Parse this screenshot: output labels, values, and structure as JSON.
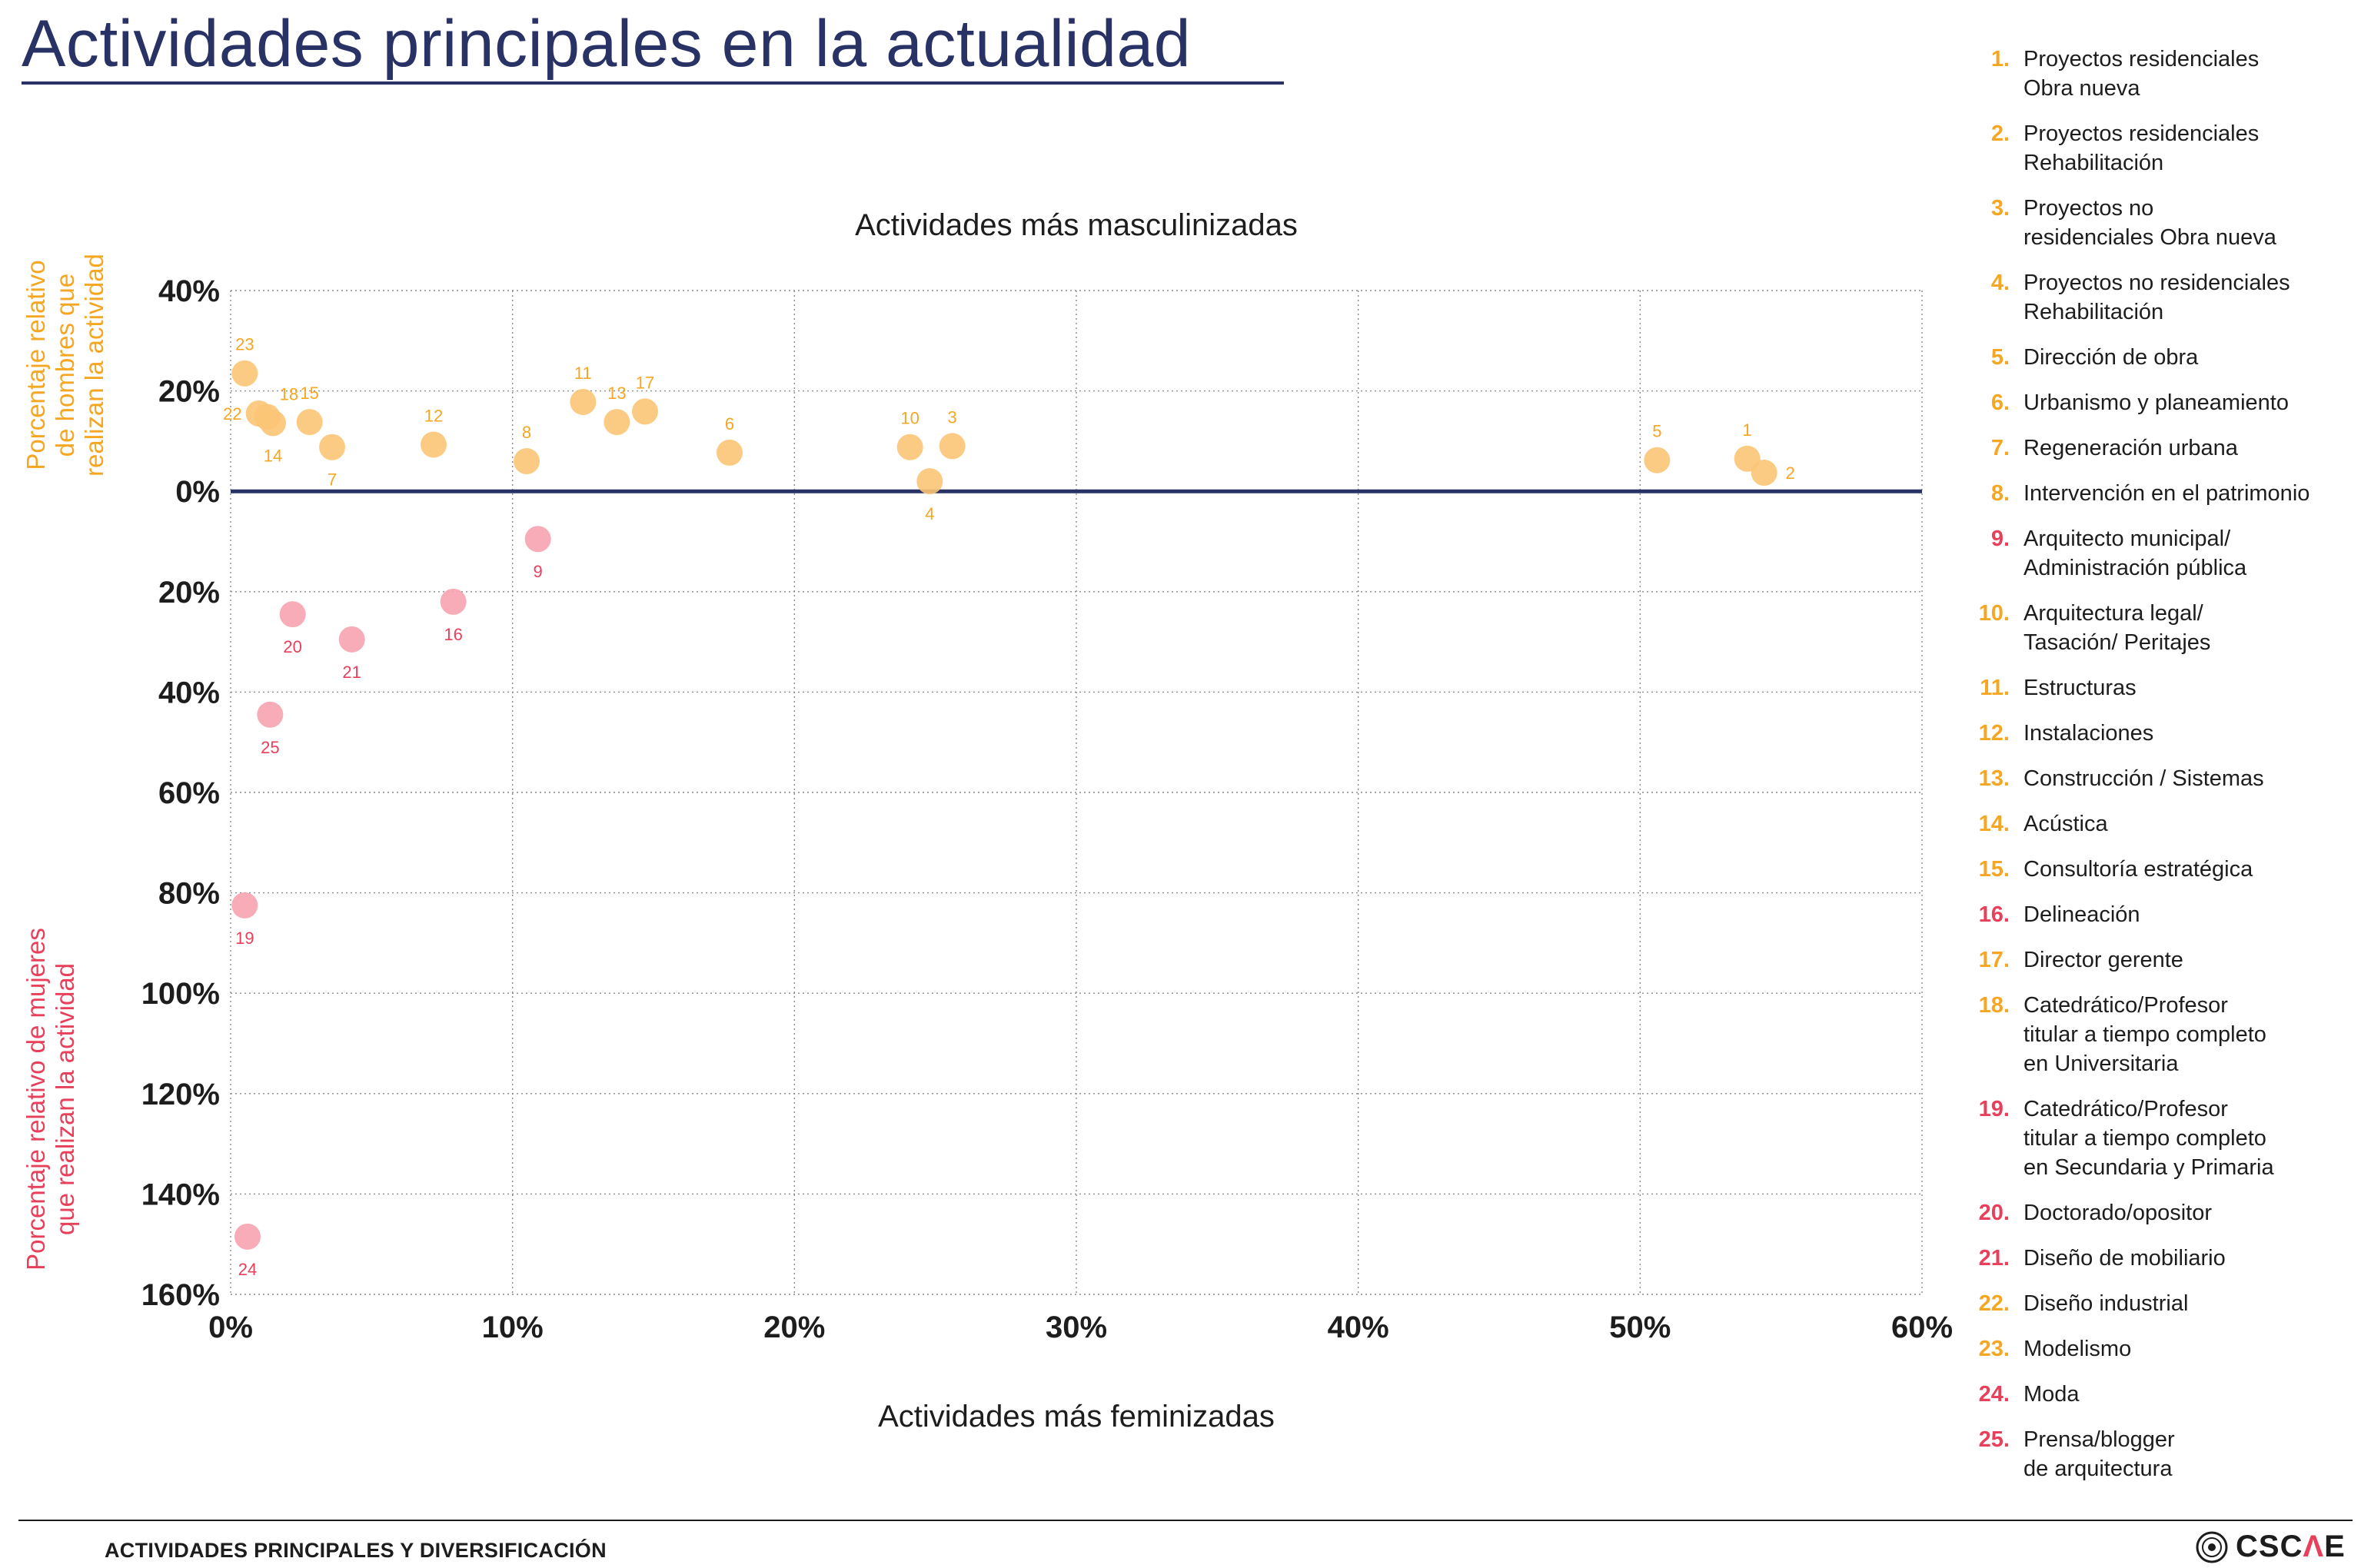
{
  "header": {
    "title": "Actividades principales en la actualidad"
  },
  "footer": {
    "section_label": "ACTIVIDADES PRINCIPALES Y DIVERSIFICACIÓN",
    "logo_text_a": "CSC",
    "logo_text_accent": "Λ",
    "logo_text_b": "E"
  },
  "colors": {
    "title": "#283264",
    "male": "#f5a623",
    "male_point": "#fbc576",
    "female": "#e8405b",
    "female_point": "#f7a3b0",
    "zero_line": "#283264",
    "grid": "#8a8a8a"
  },
  "legend": [
    {
      "num": "1.",
      "text": "Proyectos residenciales\nObra nueva",
      "group": "male"
    },
    {
      "num": "2.",
      "text": "Proyectos  residenciales\nRehabilitación",
      "group": "male"
    },
    {
      "num": "3.",
      "text": "Proyectos no\nresidenciales Obra nueva",
      "group": "male"
    },
    {
      "num": "4.",
      "text": "Proyectos no residenciales\nRehabilitación",
      "group": "male"
    },
    {
      "num": "5.",
      "text": "Dirección de obra",
      "group": "male"
    },
    {
      "num": "6.",
      "text": "Urbanismo y planeamiento",
      "group": "male"
    },
    {
      "num": "7.",
      "text": "Regeneración urbana",
      "group": "male"
    },
    {
      "num": "8.",
      "text": "Intervención en el patrimonio",
      "group": "male"
    },
    {
      "num": "9.",
      "text": "Arquitecto municipal/\nAdministración pública",
      "group": "female"
    },
    {
      "num": "10.",
      "text": "Arquitectura legal/\nTasación/ Peritajes",
      "group": "male"
    },
    {
      "num": "11.",
      "text": "Estructuras",
      "group": "male"
    },
    {
      "num": "12.",
      "text": "Instalaciones",
      "group": "male"
    },
    {
      "num": "13.",
      "text": "Construcción / Sistemas",
      "group": "male"
    },
    {
      "num": "14.",
      "text": "Acústica",
      "group": "male"
    },
    {
      "num": "15.",
      "text": "Consultoría estratégica",
      "group": "male"
    },
    {
      "num": "16.",
      "text": "Delineación",
      "group": "female"
    },
    {
      "num": "17.",
      "text": "Director gerente",
      "group": "male"
    },
    {
      "num": "18.",
      "text": "Catedrático/Profesor\ntitular a tiempo completo\nen Universitaria",
      "group": "male"
    },
    {
      "num": "19.",
      "text": "Catedrático/Profesor\ntitular a tiempo completo\nen Secundaria y Primaria",
      "group": "female"
    },
    {
      "num": "20.",
      "text": "Doctorado/opositor",
      "group": "female"
    },
    {
      "num": "21.",
      "text": "Diseño de mobiliario",
      "group": "female"
    },
    {
      "num": "22.",
      "text": "Diseño industrial",
      "group": "male"
    },
    {
      "num": "23.",
      "text": "Modelismo",
      "group": "male"
    },
    {
      "num": "24.",
      "text": "Moda",
      "group": "female"
    },
    {
      "num": "25.",
      "text": "Prensa/blogger\nde arquitectura",
      "group": "female"
    }
  ],
  "chart_data": {
    "type": "scatter",
    "title_top": "Actividades más masculinizadas",
    "xlabel": "Actividades más feminizadas",
    "ylabel_male": "Porcentaje relativo\nde hombres que\nrealizan la actividad",
    "ylabel_female": "Porcentaje relativo de mujeres\nque realizan la actividad",
    "x_ticks": [
      "0%",
      "10%",
      "20%",
      "30%",
      "40%",
      "50%",
      "60%"
    ],
    "x_range": [
      0,
      60
    ],
    "y_ticks": [
      {
        "value": 40,
        "label": "40%"
      },
      {
        "value": 20,
        "label": "20%"
      },
      {
        "value": 0,
        "label": "0%"
      },
      {
        "value": -20,
        "label": "20%"
      },
      {
        "value": -40,
        "label": "40%"
      },
      {
        "value": -60,
        "label": "60%"
      },
      {
        "value": -80,
        "label": "80%"
      },
      {
        "value": -100,
        "label": "100%"
      },
      {
        "value": -120,
        "label": "120%"
      },
      {
        "value": -140,
        "label": "140%"
      },
      {
        "value": -160,
        "label": "160%"
      }
    ],
    "y_range": [
      -160,
      40
    ],
    "grid": true,
    "points": [
      {
        "id": "1",
        "x": 53.8,
        "y": 6.5,
        "group": "male",
        "label_pos": "above"
      },
      {
        "id": "2",
        "x": 54.4,
        "y": 3.7,
        "group": "male",
        "label_pos": "right"
      },
      {
        "id": "3",
        "x": 25.6,
        "y": 9.0,
        "group": "male",
        "label_pos": "above"
      },
      {
        "id": "4",
        "x": 24.8,
        "y": 2.0,
        "group": "male",
        "label_pos": "below"
      },
      {
        "id": "5",
        "x": 50.6,
        "y": 6.2,
        "group": "male",
        "label_pos": "above"
      },
      {
        "id": "6",
        "x": 17.7,
        "y": 7.7,
        "group": "male",
        "label_pos": "above"
      },
      {
        "id": "7",
        "x": 3.6,
        "y": 8.8,
        "group": "male",
        "label_pos": "below"
      },
      {
        "id": "8",
        "x": 10.5,
        "y": 6.0,
        "group": "male",
        "label_pos": "above"
      },
      {
        "id": "9",
        "x": 10.9,
        "y": -9.5,
        "group": "female",
        "label_pos": "below"
      },
      {
        "id": "10",
        "x": 24.1,
        "y": 8.8,
        "group": "male",
        "label_pos": "above"
      },
      {
        "id": "11",
        "x": 12.5,
        "y": 17.8,
        "group": "male",
        "label_pos": "above"
      },
      {
        "id": "12",
        "x": 7.2,
        "y": 9.3,
        "group": "male",
        "label_pos": "above"
      },
      {
        "id": "13",
        "x": 13.7,
        "y": 13.8,
        "group": "male",
        "label_pos": "above"
      },
      {
        "id": "14",
        "x": 1.5,
        "y": 13.6,
        "group": "male",
        "label_pos": "below"
      },
      {
        "id": "15",
        "x": 2.8,
        "y": 13.8,
        "group": "male",
        "label_pos": "above"
      },
      {
        "id": "16",
        "x": 7.9,
        "y": -22.0,
        "group": "female",
        "label_pos": "below"
      },
      {
        "id": "17",
        "x": 14.7,
        "y": 15.9,
        "group": "male",
        "label_pos": "above"
      },
      {
        "id": "18",
        "x": 1.3,
        "y": 14.8,
        "group": "male",
        "label_pos": "above-right"
      },
      {
        "id": "19",
        "x": 0.5,
        "y": -82.5,
        "group": "female",
        "label_pos": "below"
      },
      {
        "id": "20",
        "x": 2.2,
        "y": -24.5,
        "group": "female",
        "label_pos": "below"
      },
      {
        "id": "21",
        "x": 4.3,
        "y": -29.5,
        "group": "female",
        "label_pos": "below"
      },
      {
        "id": "22",
        "x": 1.0,
        "y": 15.5,
        "group": "male",
        "label_pos": "left"
      },
      {
        "id": "23",
        "x": 0.5,
        "y": 23.5,
        "group": "male",
        "label_pos": "above"
      },
      {
        "id": "24",
        "x": 0.6,
        "y": -148.5,
        "group": "female",
        "label_pos": "below"
      },
      {
        "id": "25",
        "x": 1.4,
        "y": -44.5,
        "group": "female",
        "label_pos": "below"
      }
    ]
  }
}
